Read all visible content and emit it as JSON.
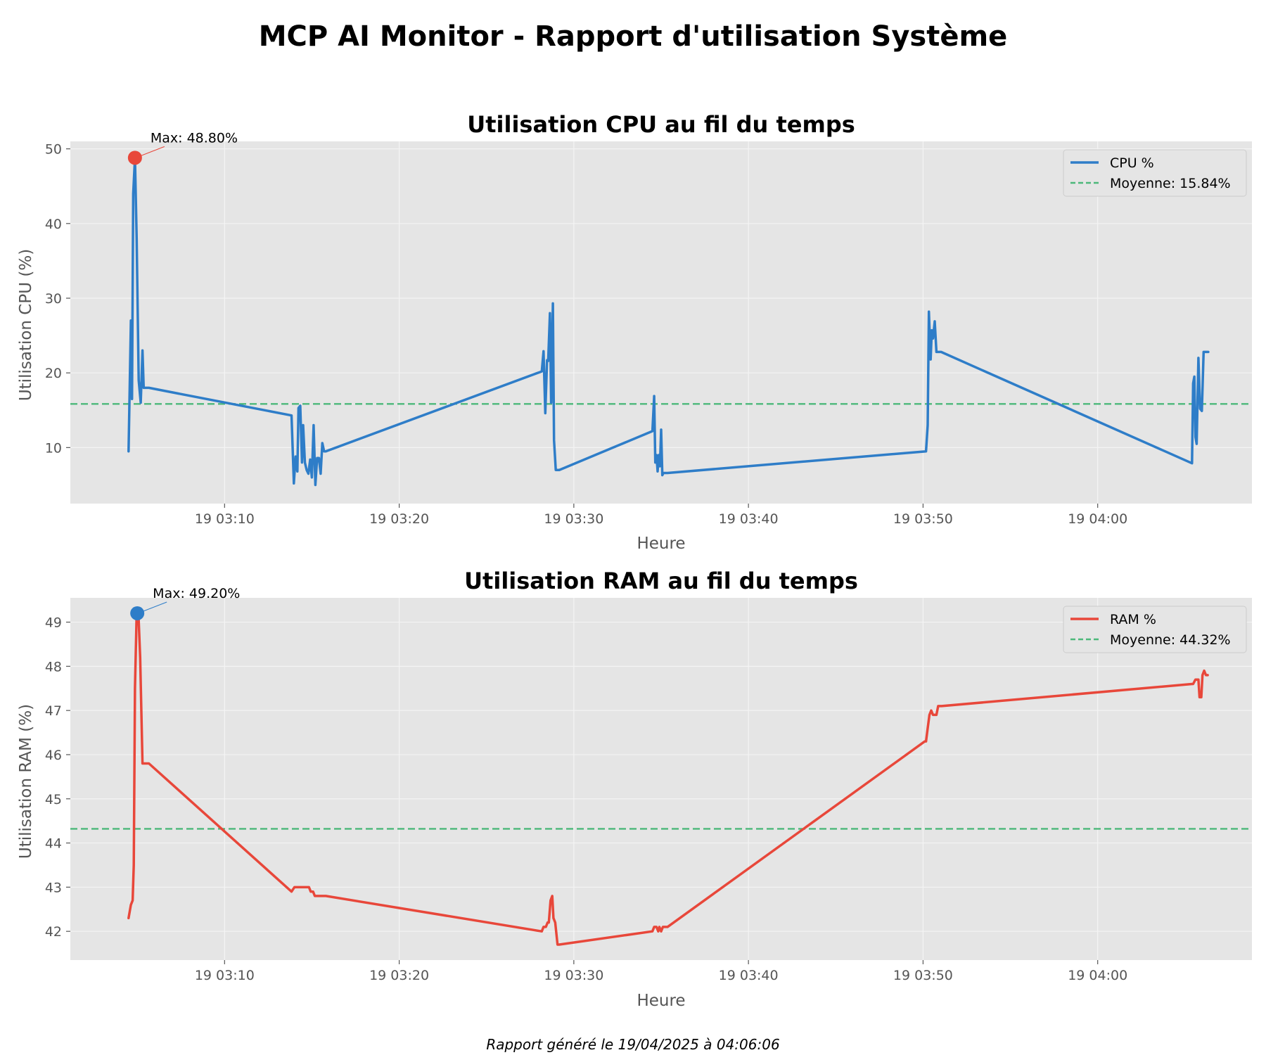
{
  "figure": {
    "title": "MCP AI Monitor - Rapport d'utilisation Système",
    "footer": "Rapport généré le 19/04/2025 à 04:06:06"
  },
  "colors": {
    "cpu_line": "#2e7dc8",
    "ram_line": "#e8473a",
    "mean_line": "#4cb87a",
    "axes_bg": "#e5e5e5",
    "grid": "#f4f4f4"
  },
  "chart_data": [
    {
      "type": "line",
      "title": "Utilisation CPU au fil du temps",
      "xlabel": "Heure",
      "ylabel": "Utilisation CPU (%)",
      "xlim": [
        "03:01:10",
        "04:08:50"
      ],
      "ylim": [
        2.5,
        51
      ],
      "xticks": [
        "19 03:10",
        "19 03:20",
        "19 03:30",
        "19 03:40",
        "19 03:50",
        "19 04:00"
      ],
      "xtick_times": [
        "03:10:00",
        "03:20:00",
        "03:30:00",
        "03:40:00",
        "03:50:00",
        "04:00:00"
      ],
      "yticks": [
        10,
        20,
        30,
        40,
        50
      ],
      "grid": true,
      "legend_position": "top-right",
      "series": [
        {
          "name": "CPU %",
          "style": "solid",
          "x": [
            "03:04:30",
            "03:04:38",
            "03:04:42",
            "03:04:46",
            "03:04:52",
            "03:04:58",
            "03:05:05",
            "03:05:12",
            "03:05:18",
            "03:05:22",
            "03:05:26",
            "03:05:30",
            "03:05:34",
            "03:05:40",
            "03:13:50",
            "03:13:58",
            "03:14:04",
            "03:14:10",
            "03:14:14",
            "03:14:20",
            "03:14:26",
            "03:14:30",
            "03:14:36",
            "03:14:42",
            "03:14:48",
            "03:14:54",
            "03:15:00",
            "03:15:06",
            "03:15:12",
            "03:15:18",
            "03:15:24",
            "03:15:30",
            "03:15:36",
            "03:15:42",
            "03:15:48",
            "03:28:10",
            "03:28:16",
            "03:28:22",
            "03:28:28",
            "03:28:32",
            "03:28:38",
            "03:28:42",
            "03:28:48",
            "03:28:52",
            "03:28:58",
            "03:29:04",
            "03:29:10",
            "03:34:30",
            "03:34:36",
            "03:34:40",
            "03:34:44",
            "03:34:48",
            "03:34:52",
            "03:34:56",
            "03:35:00",
            "03:35:04",
            "03:35:08",
            "03:35:14",
            "03:35:18",
            "03:35:22",
            "03:50:10",
            "03:50:16",
            "03:50:20",
            "03:50:26",
            "03:50:30",
            "03:50:34",
            "03:50:40",
            "03:50:46",
            "03:50:52",
            "03:50:56",
            "03:51:02",
            "04:05:24",
            "04:05:28",
            "04:05:32",
            "04:05:36",
            "04:05:40",
            "04:05:46",
            "04:05:52",
            "04:05:58",
            "04:06:04",
            "04:06:10",
            "04:06:14",
            "04:06:20"
          ],
          "y": [
            9.5,
            27,
            16.5,
            44,
            48.8,
            38,
            19,
            16,
            23,
            18,
            18,
            18,
            18,
            18,
            14.3,
            5.2,
            8.8,
            6.8,
            15.3,
            15.6,
            8,
            13,
            8,
            7,
            6.5,
            8.4,
            6,
            13,
            5,
            8.6,
            8.6,
            6.5,
            10.6,
            9.5,
            9.5,
            20.2,
            22.9,
            14.6,
            21.7,
            21.6,
            28,
            16,
            29.3,
            11,
            7,
            7,
            7,
            12.2,
            16.9,
            8,
            9,
            6.8,
            9,
            7.5,
            12.4,
            6.3,
            6.6,
            6.6,
            6.6,
            6.6,
            9.5,
            13,
            28.2,
            21.8,
            25.7,
            24.6,
            26.9,
            22.8,
            22.8,
            22.8,
            22.8,
            7.9,
            18.6,
            19.5,
            11.4,
            10.5,
            22,
            15.2,
            14.9,
            22.8,
            22.8,
            22.8,
            22.8
          ]
        },
        {
          "name": "Moyenne: 15.84%",
          "style": "dashed",
          "value": 15.84
        }
      ],
      "annotation": {
        "label": "Max: 48.80%",
        "x": "03:04:52",
        "y": 48.8,
        "marker_color": "#e8473a"
      }
    },
    {
      "type": "line",
      "title": "Utilisation RAM au fil du temps",
      "xlabel": "Heure",
      "ylabel": "Utilisation RAM (%)",
      "xlim": [
        "03:01:10",
        "04:08:50"
      ],
      "ylim": [
        41.35,
        49.55
      ],
      "xticks": [
        "19 03:10",
        "19 03:20",
        "19 03:30",
        "19 03:40",
        "19 03:50",
        "19 04:00"
      ],
      "xtick_times": [
        "03:10:00",
        "03:20:00",
        "03:30:00",
        "03:40:00",
        "03:50:00",
        "04:00:00"
      ],
      "yticks": [
        42,
        43,
        44,
        45,
        46,
        47,
        48,
        49
      ],
      "grid": true,
      "legend_position": "top-right",
      "series": [
        {
          "name": "RAM %",
          "style": "solid",
          "x": [
            "03:04:30",
            "03:04:38",
            "03:04:44",
            "03:04:48",
            "03:04:52",
            "03:04:58",
            "03:05:04",
            "03:05:10",
            "03:05:18",
            "03:05:40",
            "03:13:50",
            "03:14:00",
            "03:14:10",
            "03:14:30",
            "03:14:50",
            "03:14:56",
            "03:15:04",
            "03:15:10",
            "03:15:30",
            "03:15:48",
            "03:28:10",
            "03:28:16",
            "03:28:24",
            "03:28:30",
            "03:28:34",
            "03:28:40",
            "03:28:46",
            "03:28:50",
            "03:28:56",
            "03:29:04",
            "03:29:10",
            "03:34:30",
            "03:34:36",
            "03:34:44",
            "03:34:50",
            "03:34:54",
            "03:35:00",
            "03:35:06",
            "03:35:14",
            "03:35:22",
            "03:50:06",
            "03:50:10",
            "03:50:16",
            "03:50:22",
            "03:50:28",
            "03:50:34",
            "03:50:40",
            "03:50:46",
            "03:50:52",
            "03:51:00",
            "03:51:04",
            "04:05:24",
            "04:05:28",
            "04:05:36",
            "04:05:42",
            "04:05:46",
            "04:05:50",
            "04:05:56",
            "04:06:00",
            "04:06:06",
            "04:06:12",
            "04:06:18"
          ],
          "y": [
            42.3,
            42.6,
            42.7,
            43.5,
            47.5,
            49.2,
            49.2,
            48.2,
            45.8,
            45.8,
            42.9,
            43.0,
            43.0,
            43.0,
            43.0,
            42.9,
            42.9,
            42.8,
            42.8,
            42.8,
            42.0,
            42.1,
            42.1,
            42.2,
            42.2,
            42.7,
            42.8,
            42.3,
            42.2,
            41.7,
            41.7,
            42.0,
            42.1,
            42.1,
            42.0,
            42.1,
            42.0,
            42.1,
            42.1,
            42.1,
            46.3,
            46.3,
            46.6,
            46.9,
            47.0,
            46.9,
            46.9,
            46.9,
            47.1,
            47.1,
            47.1,
            47.6,
            47.6,
            47.7,
            47.7,
            47.7,
            47.3,
            47.3,
            47.8,
            47.9,
            47.8,
            47.8
          ]
        },
        {
          "name": "Moyenne: 44.32%",
          "style": "dashed",
          "value": 44.32
        }
      ],
      "annotation": {
        "label": "Max: 49.20%",
        "x": "03:05:00",
        "y": 49.2,
        "marker_color": "#2e7dc8"
      }
    }
  ]
}
